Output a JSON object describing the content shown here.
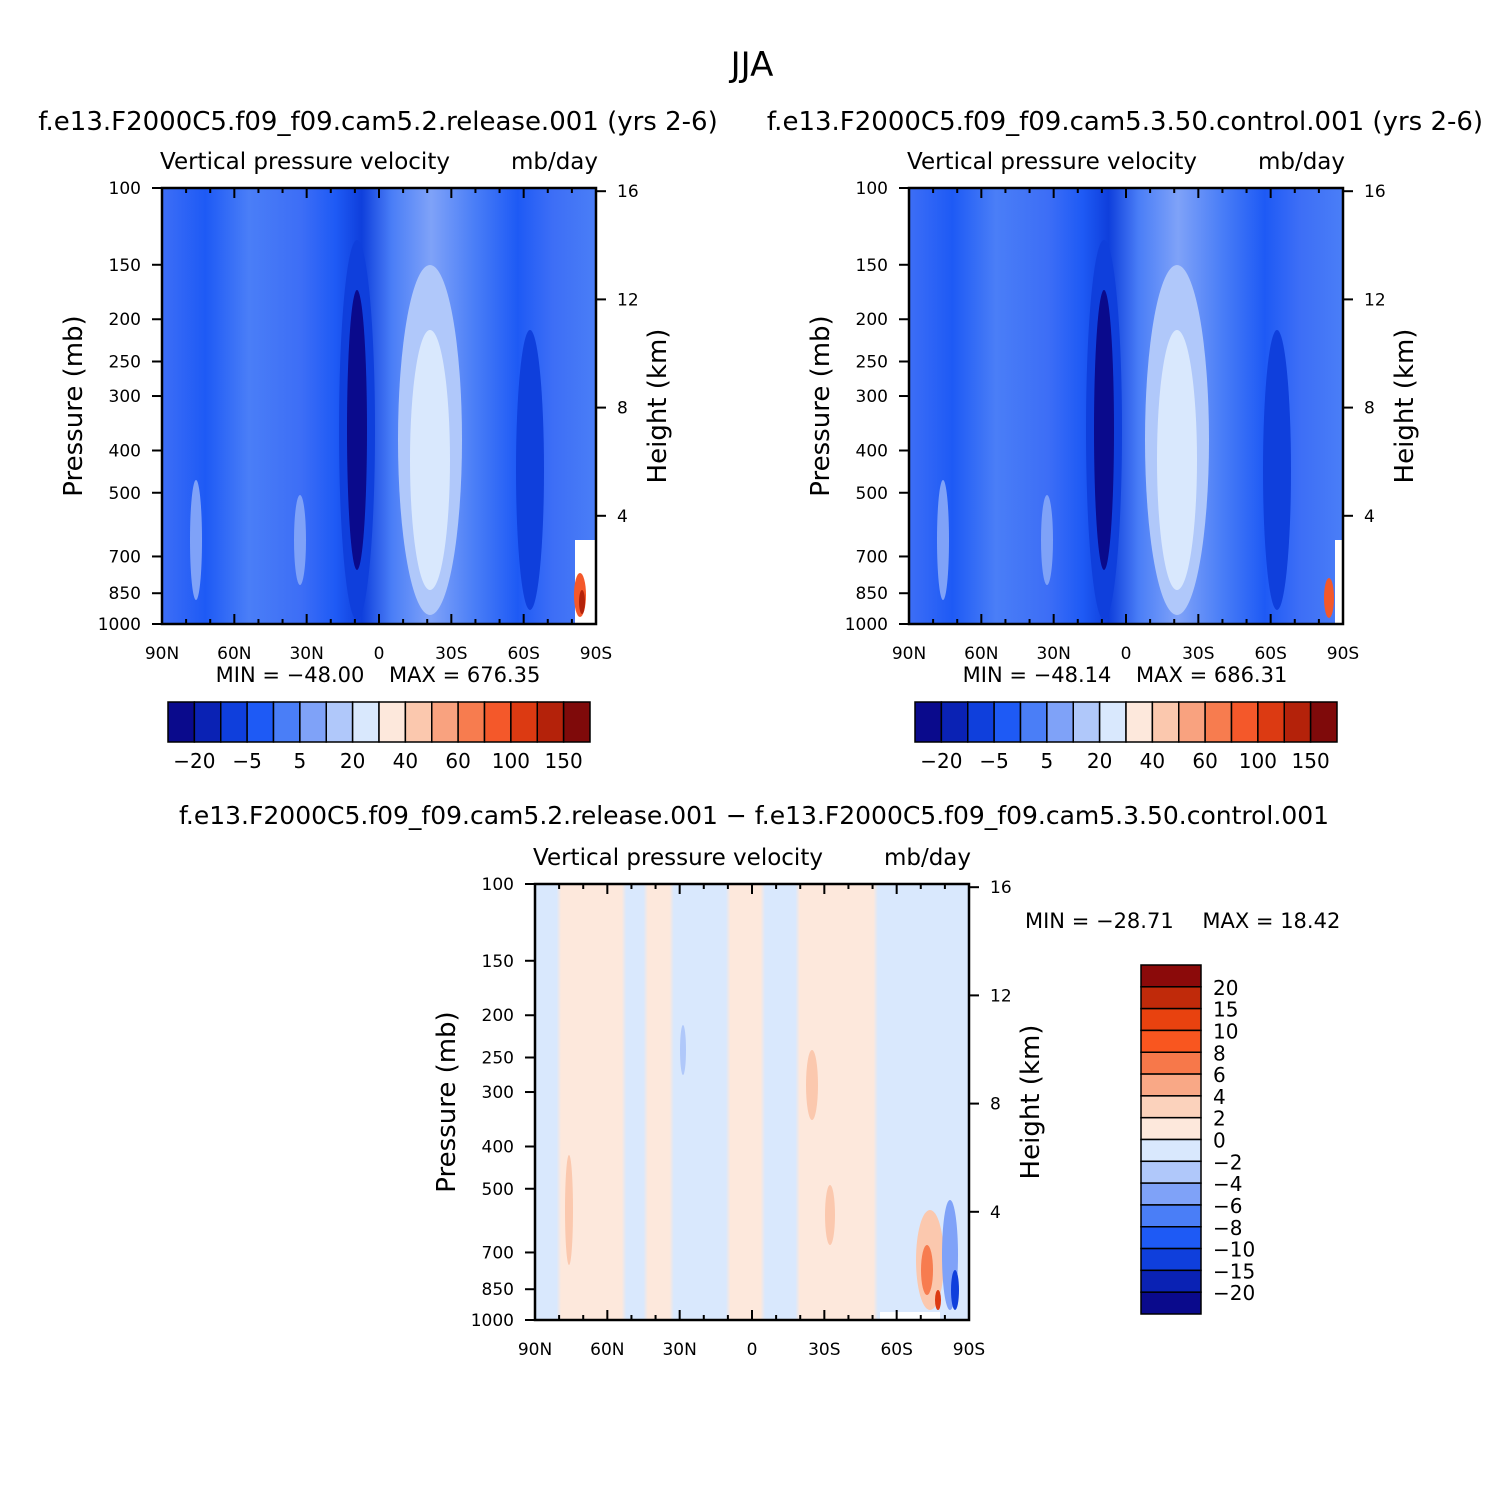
{
  "figure_title": "JJA",
  "chart_data": [
    {
      "type": "heatmap",
      "title": "f.e13.F2000C5.f09_f09.cam5.2.release.001 (yrs 2-6)",
      "subtitle_left": "Vertical pressure velocity",
      "subtitle_right": "mb/day",
      "xlabel": "",
      "ylabel": "Pressure (mb)",
      "y2label": "Height (km)",
      "x_ticks": [
        "90N",
        "60N",
        "30N",
        "0",
        "30S",
        "60S",
        "90S"
      ],
      "y_ticks": [
        "100",
        "150",
        "200",
        "250",
        "300",
        "400",
        "500",
        "700",
        "850",
        "1000"
      ],
      "y2_ticks": [
        "16",
        "12",
        "8",
        "4"
      ],
      "min_label": "MIN = −48.00",
      "max_label": "MAX = 676.35",
      "min": -48.0,
      "max": 676.35,
      "colorbar": {
        "orientation": "horizontal",
        "labels": [
          "−20",
          "−5",
          "5",
          "20",
          "40",
          "60",
          "100",
          "150"
        ],
        "colors": [
          "#0a0a8c",
          "#0a22b4",
          "#0f3fdc",
          "#1e5af5",
          "#4a7ef7",
          "#7fa2f8",
          "#b0c8fa",
          "#d9e8fd",
          "#fde8dc",
          "#fbc8ae",
          "#f9a27f",
          "#f77c4f",
          "#f4582a",
          "#dc3a12",
          "#b4220a",
          "#7f0a0a"
        ]
      },
      "field": "descent_over_antarctica_strong_tropical_ascent"
    },
    {
      "type": "heatmap",
      "title": "f.e13.F2000C5.f09_f09.cam5.3.50.control.001 (yrs 2-6)",
      "subtitle_left": "Vertical pressure velocity",
      "subtitle_right": "mb/day",
      "xlabel": "",
      "ylabel": "Pressure (mb)",
      "y2label": "Height (km)",
      "x_ticks": [
        "90N",
        "60N",
        "30N",
        "0",
        "30S",
        "60S",
        "90S"
      ],
      "y_ticks": [
        "100",
        "150",
        "200",
        "250",
        "300",
        "400",
        "500",
        "700",
        "850",
        "1000"
      ],
      "y2_ticks": [
        "16",
        "12",
        "8",
        "4"
      ],
      "min_label": "MIN = −48.14",
      "max_label": "MAX = 686.31",
      "min": -48.14,
      "max": 686.31,
      "colorbar": {
        "orientation": "horizontal",
        "labels": [
          "−20",
          "−5",
          "5",
          "20",
          "40",
          "60",
          "100",
          "150"
        ],
        "colors": [
          "#0a0a8c",
          "#0a22b4",
          "#0f3fdc",
          "#1e5af5",
          "#4a7ef7",
          "#7fa2f8",
          "#b0c8fa",
          "#d9e8fd",
          "#fde8dc",
          "#fbc8ae",
          "#f9a27f",
          "#f77c4f",
          "#f4582a",
          "#dc3a12",
          "#b4220a",
          "#7f0a0a"
        ]
      }
    },
    {
      "type": "heatmap",
      "title": "f.e13.F2000C5.f09_f09.cam5.2.release.001 − f.e13.F2000C5.f09_f09.cam5.3.50.control.001",
      "subtitle_left": "Vertical pressure velocity",
      "subtitle_right": "mb/day",
      "xlabel": "",
      "ylabel": "Pressure (mb)",
      "y2label": "Height (km)",
      "x_ticks": [
        "90N",
        "60N",
        "30N",
        "0",
        "30S",
        "60S",
        "90S"
      ],
      "y_ticks": [
        "100",
        "150",
        "200",
        "250",
        "300",
        "400",
        "500",
        "700",
        "850",
        "1000"
      ],
      "y2_ticks": [
        "16",
        "12",
        "8",
        "4"
      ],
      "min_label": "MIN = −28.71",
      "max_label": "MAX = 18.42",
      "min": -28.71,
      "max": 18.42,
      "colorbar": {
        "orientation": "vertical",
        "labels": [
          "20",
          "15",
          "10",
          "8",
          "6",
          "4",
          "2",
          "0",
          "−2",
          "−4",
          "−6",
          "−8",
          "−10",
          "−15",
          "−20"
        ],
        "colors": [
          "#8b0a0a",
          "#c02a0a",
          "#e8420f",
          "#f9561f",
          "#f7784a",
          "#f9a886",
          "#fbd2bc",
          "#fde8dc",
          "#d9e8fd",
          "#b0c8fa",
          "#7fa2f8",
          "#4a7ef7",
          "#1e5af5",
          "#0f3fdc",
          "#0a22b4",
          "#0a0a8c"
        ]
      }
    }
  ]
}
